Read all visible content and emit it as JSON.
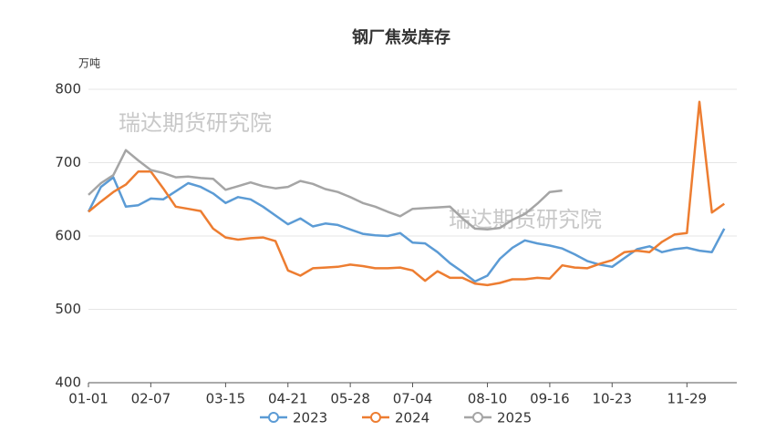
{
  "chart_data": {
    "type": "line",
    "title": "钢厂焦炭库存",
    "y_unit": "万吨",
    "watermarks": [
      "瑞达期货研究院",
      "瑞达期货研究院"
    ],
    "categories": [
      "01-01",
      null,
      null,
      null,
      null,
      "02-07",
      null,
      null,
      null,
      null,
      null,
      "03-15",
      null,
      null,
      null,
      null,
      "04-21",
      null,
      null,
      null,
      null,
      "05-28",
      null,
      null,
      null,
      null,
      "07-04",
      null,
      null,
      null,
      null,
      null,
      "08-10",
      null,
      null,
      null,
      null,
      "09-16",
      null,
      null,
      null,
      null,
      "10-23",
      null,
      null,
      null,
      null,
      null,
      "11-29",
      null,
      null,
      null,
      null
    ],
    "ylim": [
      400,
      800
    ],
    "yticks": [
      400,
      500,
      600,
      700,
      800
    ],
    "grid": true,
    "series": [
      {
        "name": "2023",
        "color": "#5b9bd5",
        "values": [
          633,
          667,
          680,
          640,
          642,
          651,
          650,
          661,
          672,
          667,
          658,
          645,
          653,
          650,
          640,
          628,
          616,
          624,
          613,
          617,
          615,
          609,
          603,
          601,
          600,
          604,
          591,
          590,
          578,
          563,
          551,
          538,
          546,
          569,
          584,
          594,
          590,
          587,
          583,
          575,
          566,
          561,
          558,
          570,
          582,
          586,
          578,
          582,
          584,
          580,
          578,
          610,
          null
        ]
      },
      {
        "name": "2024",
        "color": "#ed7d31",
        "values": [
          633,
          647,
          660,
          670,
          688,
          688,
          665,
          640,
          637,
          634,
          610,
          598,
          595,
          597,
          598,
          593,
          553,
          546,
          556,
          557,
          558,
          561,
          559,
          556,
          556,
          557,
          553,
          539,
          552,
          543,
          543,
          535,
          533,
          536,
          541,
          541,
          543,
          542,
          560,
          557,
          556,
          562,
          567,
          578,
          580,
          578,
          592,
          602,
          604,
          783,
          632,
          644,
          null
        ]
      },
      {
        "name": "2025",
        "color": "#a5a5a5",
        "values": [
          656,
          672,
          683,
          717,
          703,
          690,
          686,
          680,
          681,
          679,
          678,
          663,
          668,
          673,
          668,
          665,
          667,
          675,
          671,
          664,
          660,
          653,
          645,
          640,
          633,
          627,
          637,
          638,
          639,
          640,
          624,
          610,
          609,
          611,
          622,
          630,
          644,
          660,
          662,
          null,
          null,
          null,
          null,
          null,
          null,
          null,
          null,
          null,
          null,
          null,
          null,
          null,
          null
        ]
      }
    ]
  }
}
